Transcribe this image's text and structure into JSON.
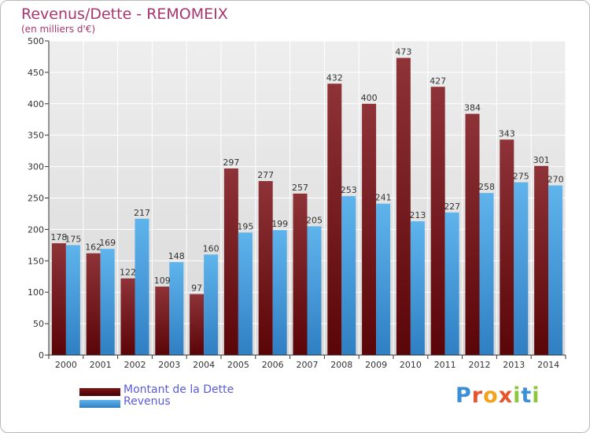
{
  "header": {
    "title": "Revenus/Dette - REMOMEIX",
    "subtitle": "(en milliers d'€)"
  },
  "chart_data": {
    "type": "bar",
    "categories": [
      "2000",
      "2001",
      "2002",
      "2003",
      "2004",
      "2005",
      "2006",
      "2007",
      "2008",
      "2009",
      "2010",
      "2011",
      "2012",
      "2013",
      "2014"
    ],
    "series": [
      {
        "name": "Montant de la Dette",
        "color": "#7a1418",
        "values": [
          178,
          162,
          122,
          109,
          97,
          297,
          277,
          257,
          432,
          400,
          473,
          427,
          384,
          343,
          301
        ]
      },
      {
        "name": "Revenus",
        "color": "#3d9be0",
        "values": [
          175,
          169,
          217,
          148,
          160,
          195,
          199,
          205,
          253,
          241,
          213,
          227,
          258,
          275,
          270
        ]
      }
    ],
    "ylim": [
      0,
      500
    ],
    "yticks": [
      0,
      50,
      100,
      150,
      200,
      250,
      300,
      350,
      400,
      450,
      500
    ],
    "grid": true,
    "legend_position": "bottom-left"
  },
  "branding": {
    "logo_letters": [
      {
        "char": "P",
        "color": "#3a8fd6"
      },
      {
        "char": "r",
        "color": "#e8542c"
      },
      {
        "char": "o",
        "color": "#f2a21d"
      },
      {
        "char": "x",
        "color": "#e8542c"
      },
      {
        "char": "i",
        "color": "#8cc63f"
      },
      {
        "char": "t",
        "color": "#3a8fd6"
      },
      {
        "char": "i",
        "color": "#8cc63f"
      }
    ]
  }
}
